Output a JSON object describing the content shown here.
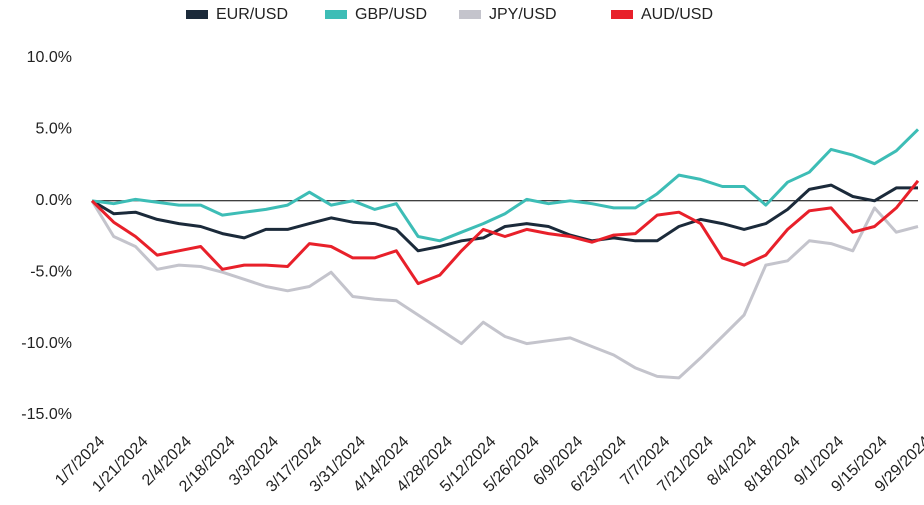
{
  "chart_data": {
    "type": "line",
    "categories": [
      "1/7/2024",
      null,
      "1/21/2024",
      null,
      "2/4/2024",
      null,
      "2/18/2024",
      null,
      "3/3/2024",
      null,
      "3/17/2024",
      null,
      "3/31/2024",
      null,
      "4/14/2024",
      null,
      "4/28/2024",
      null,
      "5/12/2024",
      null,
      "5/26/2024",
      null,
      "6/9/2024",
      null,
      "6/23/2024",
      null,
      "7/7/2024",
      null,
      "7/21/2024",
      null,
      "8/4/2024",
      null,
      "8/18/2024",
      null,
      "9/1/2024",
      null,
      "9/15/2024",
      null,
      "9/29/2024"
    ],
    "series": [
      {
        "name": "EUR/USD",
        "color": "#1b2a3a",
        "values": [
          0,
          -0.9,
          -0.8,
          -1.3,
          -1.6,
          -1.8,
          -2.3,
          -2.6,
          -2.0,
          -2.0,
          -1.6,
          -1.2,
          -1.5,
          -1.6,
          -2.0,
          -3.5,
          -3.2,
          -2.8,
          -2.6,
          -1.8,
          -1.6,
          -1.8,
          -2.4,
          -2.8,
          -2.6,
          -2.8,
          -2.8,
          -1.8,
          -1.3,
          -1.6,
          -2.0,
          -1.6,
          -0.6,
          0.8,
          1.1,
          0.3,
          0.0,
          0.9,
          0.9
        ]
      },
      {
        "name": "GBP/USD",
        "color": "#3dbdb6",
        "values": [
          0,
          -0.2,
          0.1,
          -0.1,
          -0.3,
          -0.3,
          -1.0,
          -0.8,
          -0.6,
          -0.3,
          0.6,
          -0.3,
          0.0,
          -0.6,
          -0.2,
          -2.5,
          -2.8,
          -2.2,
          -1.6,
          -0.9,
          0.1,
          -0.2,
          0.0,
          -0.2,
          -0.5,
          -0.5,
          0.5,
          1.8,
          1.5,
          1.0,
          1.0,
          -0.3,
          1.3,
          2.0,
          3.6,
          3.2,
          2.6,
          3.5,
          5.0
        ]
      },
      {
        "name": "JPY/USD",
        "color": "#c4c4cc",
        "values": [
          0,
          -2.5,
          -3.2,
          -4.8,
          -4.5,
          -4.6,
          -5.0,
          -5.5,
          -6.0,
          -6.3,
          -6.0,
          -5.0,
          -6.7,
          -6.9,
          -7.0,
          -8.0,
          -9.0,
          -10.0,
          -8.5,
          -9.5,
          -10.0,
          -9.8,
          -9.6,
          -10.2,
          -10.8,
          -11.7,
          -12.3,
          -12.4,
          -11.0,
          -9.5,
          -8.0,
          -4.5,
          -4.2,
          -2.8,
          -3.0,
          -3.5,
          -0.5,
          -2.2,
          -1.8
        ]
      },
      {
        "name": "AUD/USD",
        "color": "#e8202a",
        "values": [
          0,
          -1.5,
          -2.5,
          -3.8,
          -3.5,
          -3.2,
          -4.8,
          -4.5,
          -4.5,
          -4.6,
          -3.0,
          -3.2,
          -4.0,
          -4.0,
          -3.5,
          -5.8,
          -5.2,
          -3.5,
          -2.0,
          -2.5,
          -2.0,
          -2.3,
          -2.5,
          -2.9,
          -2.4,
          -2.3,
          -1.0,
          -0.8,
          -1.6,
          -4.0,
          -4.5,
          -3.8,
          -2.0,
          -0.7,
          -0.5,
          -2.2,
          -1.8,
          -0.5,
          1.4
        ]
      }
    ],
    "ylim": [
      -15,
      10
    ],
    "yticks": [
      {
        "value": -15,
        "label": "-15.0%"
      },
      {
        "value": -10,
        "label": "-10.0%"
      },
      {
        "value": -5,
        "label": "-5.0%"
      },
      {
        "value": 0,
        "label": "0.0%"
      },
      {
        "value": 5,
        "label": "5.0%"
      },
      {
        "value": 10,
        "label": "10.0%"
      }
    ],
    "grid": false,
    "legend": "top"
  }
}
